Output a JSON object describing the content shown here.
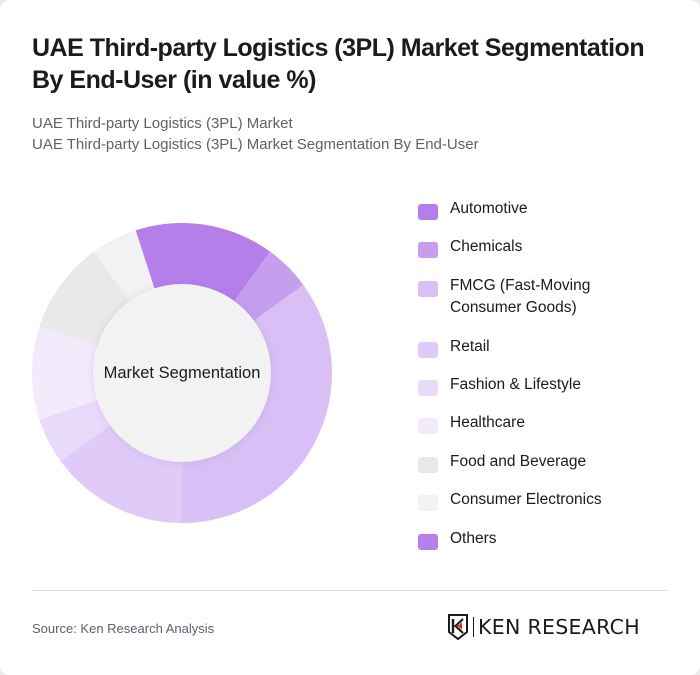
{
  "header": {
    "title": "UAE Third-party Logistics (3PL) Market Segmentation By End-User (in value %)",
    "subtitle_line1": "UAE Third-party Logistics (3PL) Market",
    "subtitle_line2": "UAE Third-party Logistics (3PL) Market Segmentation By End-User"
  },
  "chart": {
    "center_label": "Market Segmentation"
  },
  "legend": {
    "items": [
      {
        "label": "Automotive",
        "color": "#b57fe9"
      },
      {
        "label": "Chemicals",
        "color": "#c69eee"
      },
      {
        "label": "FMCG (Fast-Moving Consumer Goods)",
        "color": "#d9bff5"
      },
      {
        "label": "Retail",
        "color": "#e0caf7"
      },
      {
        "label": "Fashion & Lifestyle",
        "color": "#e9dafa"
      },
      {
        "label": "Healthcare",
        "color": "#f2ebfc"
      },
      {
        "label": "Food and Beverage",
        "color": "#e9e9e9"
      },
      {
        "label": "Consumer Electronics",
        "color": "#f2f2f2"
      },
      {
        "label": "Others",
        "color": "#b57fe9"
      }
    ]
  },
  "footer": {
    "source": "Source: Ken Research Analysis",
    "logo_text": "KEN RESEARCH"
  },
  "chart_data": {
    "type": "pie",
    "variant": "donut",
    "title": "UAE Third-party Logistics (3PL) Market Segmentation By End-User (in value %)",
    "subtitle": "UAE Third-party Logistics (3PL) Market Segmentation By End-User",
    "center_label": "Market Segmentation",
    "categories": [
      "Automotive",
      "Chemicals",
      "FMCG (Fast-Moving Consumer Goods)",
      "Retail",
      "Fashion & Lifestyle",
      "Healthcare",
      "Food and Beverage",
      "Consumer Electronics",
      "Others"
    ],
    "values": [
      10,
      5,
      35,
      15,
      5,
      10,
      10,
      5,
      5
    ],
    "colors": [
      "#b57fe9",
      "#c69eee",
      "#d9bff5",
      "#e0caf7",
      "#e9dafa",
      "#f2ebfc",
      "#e9e9e9",
      "#f2f2f2",
      "#b57fe9"
    ],
    "unit": "%",
    "start_angle_deg": 0,
    "direction": "clockwise",
    "legend_position": "right",
    "data_labels": false
  }
}
